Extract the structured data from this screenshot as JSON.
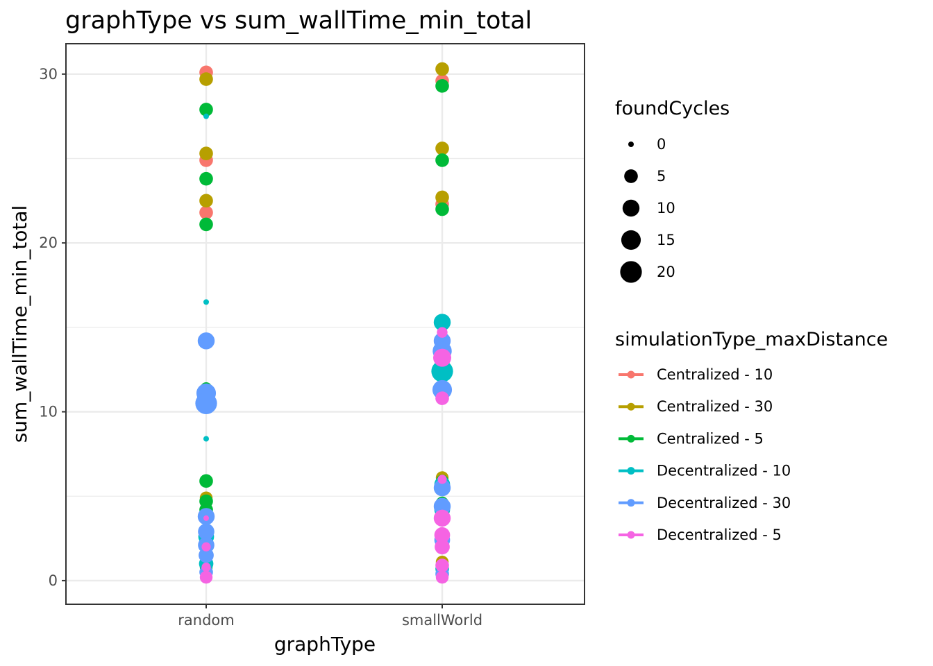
{
  "chart_data": {
    "type": "scatter",
    "title": "graphType  vs  sum_wallTime_min_total",
    "xlabel": "graphType",
    "ylabel": "sum_wallTime_min_total",
    "categories": [
      "random",
      "smallWorld"
    ],
    "ylim": [
      -1.4,
      31.8
    ],
    "yticks": [
      0,
      10,
      20,
      30
    ],
    "grid": true,
    "legend_position": "right",
    "size_legend": {
      "title": "foundCycles",
      "values": [
        0,
        5,
        10,
        15,
        20
      ]
    },
    "color_legend": {
      "title": "simulationType_maxDistance"
    },
    "series": [
      {
        "name": "Centralized - 10",
        "color": "#F8766D",
        "points": [
          {
            "x": "random",
            "y": 30.1,
            "size": 5
          },
          {
            "x": "random",
            "y": 24.9,
            "size": 5
          },
          {
            "x": "random",
            "y": 21.8,
            "size": 5
          },
          {
            "x": "smallWorld",
            "y": 29.6,
            "size": 5
          },
          {
            "x": "smallWorld",
            "y": 22.3,
            "size": 5
          }
        ]
      },
      {
        "name": "Centralized - 30",
        "color": "#B79F00",
        "points": [
          {
            "x": "random",
            "y": 29.7,
            "size": 5
          },
          {
            "x": "random",
            "y": 25.3,
            "size": 5
          },
          {
            "x": "random",
            "y": 22.5,
            "size": 5
          },
          {
            "x": "random",
            "y": 4.9,
            "size": 4
          },
          {
            "x": "smallWorld",
            "y": 30.3,
            "size": 5
          },
          {
            "x": "smallWorld",
            "y": 25.6,
            "size": 5
          },
          {
            "x": "smallWorld",
            "y": 22.7,
            "size": 5
          },
          {
            "x": "smallWorld",
            "y": 6.1,
            "size": 4
          },
          {
            "x": "smallWorld",
            "y": 1.1,
            "size": 4
          }
        ]
      },
      {
        "name": "Centralized - 5",
        "color": "#00BA38",
        "points": [
          {
            "x": "random",
            "y": 27.9,
            "size": 5
          },
          {
            "x": "random",
            "y": 23.8,
            "size": 5
          },
          {
            "x": "random",
            "y": 21.1,
            "size": 5
          },
          {
            "x": "random",
            "y": 11.4,
            "size": 3
          },
          {
            "x": "random",
            "y": 5.9,
            "size": 5
          },
          {
            "x": "random",
            "y": 4.7,
            "size": 5
          },
          {
            "x": "random",
            "y": 4.2,
            "size": 5
          },
          {
            "x": "random",
            "y": 1.5,
            "size": 4
          },
          {
            "x": "random",
            "y": 0.8,
            "size": 4
          },
          {
            "x": "smallWorld",
            "y": 29.3,
            "size": 5
          },
          {
            "x": "smallWorld",
            "y": 24.9,
            "size": 5
          },
          {
            "x": "smallWorld",
            "y": 22.0,
            "size": 5
          },
          {
            "x": "smallWorld",
            "y": 5.9,
            "size": 4
          },
          {
            "x": "smallWorld",
            "y": 4.6,
            "size": 4
          },
          {
            "x": "smallWorld",
            "y": 3.9,
            "size": 4
          }
        ]
      },
      {
        "name": "Decentralized - 10",
        "color": "#00BFC4",
        "points": [
          {
            "x": "random",
            "y": 27.5,
            "size": 0
          },
          {
            "x": "random",
            "y": 16.5,
            "size": 0
          },
          {
            "x": "random",
            "y": 8.4,
            "size": 0
          },
          {
            "x": "random",
            "y": 2.6,
            "size": 8
          },
          {
            "x": "random",
            "y": 1.0,
            "size": 6
          },
          {
            "x": "smallWorld",
            "y": 15.3,
            "size": 10
          },
          {
            "x": "smallWorld",
            "y": 12.4,
            "size": 20
          },
          {
            "x": "smallWorld",
            "y": 5.7,
            "size": 8
          },
          {
            "x": "smallWorld",
            "y": 4.2,
            "size": 8
          },
          {
            "x": "smallWorld",
            "y": 0.7,
            "size": 5
          }
        ]
      },
      {
        "name": "Decentralized - 30",
        "color": "#619CFF",
        "points": [
          {
            "x": "random",
            "y": 14.2,
            "size": 10
          },
          {
            "x": "random",
            "y": 11.1,
            "size": 15
          },
          {
            "x": "random",
            "y": 10.5,
            "size": 20
          },
          {
            "x": "random",
            "y": 3.8,
            "size": 10
          },
          {
            "x": "random",
            "y": 2.9,
            "size": 9
          },
          {
            "x": "random",
            "y": 2.1,
            "size": 9
          },
          {
            "x": "random",
            "y": 1.5,
            "size": 7
          },
          {
            "x": "random",
            "y": 0.5,
            "size": 5
          },
          {
            "x": "smallWorld",
            "y": 14.2,
            "size": 10
          },
          {
            "x": "smallWorld",
            "y": 13.6,
            "size": 14
          },
          {
            "x": "smallWorld",
            "y": 11.3,
            "size": 15
          },
          {
            "x": "smallWorld",
            "y": 5.5,
            "size": 10
          },
          {
            "x": "smallWorld",
            "y": 4.4,
            "size": 10
          },
          {
            "x": "smallWorld",
            "y": 2.4,
            "size": 8
          },
          {
            "x": "smallWorld",
            "y": 0.4,
            "size": 5
          }
        ]
      },
      {
        "name": "Decentralized - 5",
        "color": "#F564E3",
        "points": [
          {
            "x": "random",
            "y": 3.7,
            "size": 0
          },
          {
            "x": "random",
            "y": 2.0,
            "size": 1
          },
          {
            "x": "random",
            "y": 0.8,
            "size": 1
          },
          {
            "x": "random",
            "y": 0.2,
            "size": 4
          },
          {
            "x": "smallWorld",
            "y": 14.7,
            "size": 2
          },
          {
            "x": "smallWorld",
            "y": 13.2,
            "size": 12
          },
          {
            "x": "smallWorld",
            "y": 10.8,
            "size": 5
          },
          {
            "x": "smallWorld",
            "y": 6.0,
            "size": 1
          },
          {
            "x": "smallWorld",
            "y": 3.7,
            "size": 10
          },
          {
            "x": "smallWorld",
            "y": 2.7,
            "size": 8
          },
          {
            "x": "smallWorld",
            "y": 2.0,
            "size": 7
          },
          {
            "x": "smallWorld",
            "y": 0.9,
            "size": 5
          },
          {
            "x": "smallWorld",
            "y": 0.2,
            "size": 4
          }
        ]
      }
    ]
  }
}
